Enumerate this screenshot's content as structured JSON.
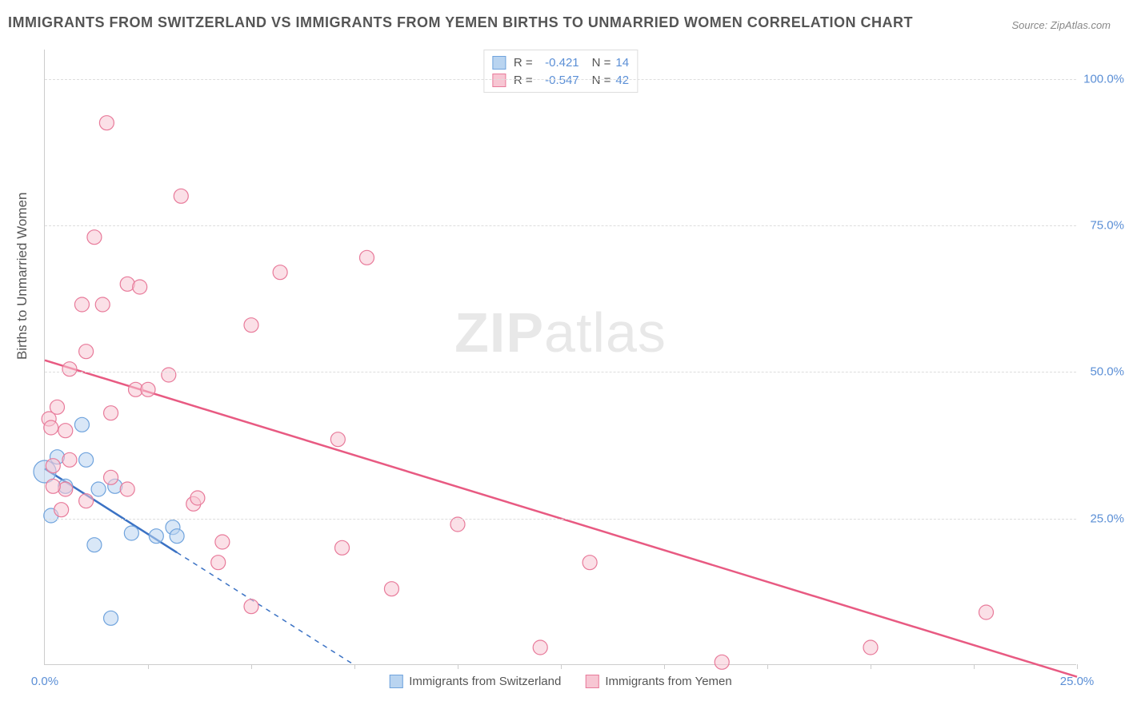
{
  "title": "IMMIGRANTS FROM SWITZERLAND VS IMMIGRANTS FROM YEMEN BIRTHS TO UNMARRIED WOMEN CORRELATION CHART",
  "source": "Source: ZipAtlas.com",
  "y_axis_label": "Births to Unmarried Women",
  "watermark_bold": "ZIP",
  "watermark_thin": "atlas",
  "chart": {
    "type": "scatter",
    "background_color": "#ffffff",
    "grid_color": "#dddddd",
    "axis_color": "#cccccc",
    "tick_label_color": "#5b8fd6",
    "xlim": [
      0,
      25
    ],
    "ylim": [
      0,
      105
    ],
    "y_ticks": [
      25,
      50,
      75,
      100
    ],
    "y_tick_labels": [
      "25.0%",
      "50.0%",
      "75.0%",
      "100.0%"
    ],
    "x_ticks_minor": [
      2.5,
      5,
      7.5,
      10,
      12.5,
      15,
      17.5,
      20,
      22.5,
      25
    ],
    "x_tick_labels": [
      {
        "v": 0,
        "label": "0.0%"
      },
      {
        "v": 25,
        "label": "25.0%"
      }
    ],
    "series": [
      {
        "name": "Immigrants from Switzerland",
        "marker_color_fill": "#b9d4f0",
        "marker_color_stroke": "#6fa3dd",
        "marker_fill_opacity": 0.55,
        "marker_radius": 9,
        "line_color": "#3b72c4",
        "line_width": 2.5,
        "line_dash_after_x": 3.2,
        "r": "-0.421",
        "n": "14",
        "trend": {
          "x1": 0,
          "y1": 33.5,
          "x2": 7.5,
          "y2": 0
        },
        "points": [
          {
            "x": 0.0,
            "y": 33.0,
            "r": 14
          },
          {
            "x": 0.9,
            "y": 41.0
          },
          {
            "x": 0.3,
            "y": 35.5
          },
          {
            "x": 0.5,
            "y": 30.5
          },
          {
            "x": 0.15,
            "y": 25.5
          },
          {
            "x": 1.0,
            "y": 35.0
          },
          {
            "x": 1.3,
            "y": 30.0
          },
          {
            "x": 1.7,
            "y": 30.5
          },
          {
            "x": 1.2,
            "y": 20.5
          },
          {
            "x": 2.1,
            "y": 22.5
          },
          {
            "x": 2.7,
            "y": 22.0
          },
          {
            "x": 3.1,
            "y": 23.5
          },
          {
            "x": 3.2,
            "y": 22.0
          },
          {
            "x": 1.6,
            "y": 8.0
          }
        ]
      },
      {
        "name": "Immigrants from Yemen",
        "marker_color_fill": "#f7c6d3",
        "marker_color_stroke": "#e87a9a",
        "marker_fill_opacity": 0.55,
        "marker_radius": 9,
        "line_color": "#e85a82",
        "line_width": 2.5,
        "r": "-0.547",
        "n": "42",
        "trend": {
          "x1": 0,
          "y1": 52.0,
          "x2": 25,
          "y2": -2
        },
        "points": [
          {
            "x": 1.5,
            "y": 92.5
          },
          {
            "x": 3.3,
            "y": 80.0
          },
          {
            "x": 1.2,
            "y": 73.0
          },
          {
            "x": 7.8,
            "y": 69.5
          },
          {
            "x": 5.7,
            "y": 67.0
          },
          {
            "x": 2.0,
            "y": 65.0
          },
          {
            "x": 2.3,
            "y": 64.5
          },
          {
            "x": 0.9,
            "y": 61.5
          },
          {
            "x": 1.4,
            "y": 61.5
          },
          {
            "x": 5.0,
            "y": 58.0
          },
          {
            "x": 1.0,
            "y": 53.5
          },
          {
            "x": 0.6,
            "y": 50.5
          },
          {
            "x": 3.0,
            "y": 49.5
          },
          {
            "x": 2.2,
            "y": 47.0
          },
          {
            "x": 2.5,
            "y": 47.0
          },
          {
            "x": 0.3,
            "y": 44.0
          },
          {
            "x": 0.1,
            "y": 42.0
          },
          {
            "x": 1.6,
            "y": 43.0
          },
          {
            "x": 0.5,
            "y": 40.0
          },
          {
            "x": 0.15,
            "y": 40.5
          },
          {
            "x": 7.1,
            "y": 38.5
          },
          {
            "x": 0.2,
            "y": 34.0
          },
          {
            "x": 1.6,
            "y": 32.0
          },
          {
            "x": 0.5,
            "y": 30.0
          },
          {
            "x": 0.6,
            "y": 35.0
          },
          {
            "x": 3.6,
            "y": 27.5
          },
          {
            "x": 3.7,
            "y": 28.5
          },
          {
            "x": 0.4,
            "y": 26.5
          },
          {
            "x": 10.0,
            "y": 24.0
          },
          {
            "x": 4.3,
            "y": 21.0
          },
          {
            "x": 7.2,
            "y": 20.0
          },
          {
            "x": 4.2,
            "y": 17.5
          },
          {
            "x": 13.2,
            "y": 17.5
          },
          {
            "x": 8.4,
            "y": 13.0
          },
          {
            "x": 5.0,
            "y": 10.0
          },
          {
            "x": 22.8,
            "y": 9.0
          },
          {
            "x": 12.0,
            "y": 3.0
          },
          {
            "x": 20.0,
            "y": 3.0
          },
          {
            "x": 16.4,
            "y": 0.5
          },
          {
            "x": 0.2,
            "y": 30.5
          },
          {
            "x": 1.0,
            "y": 28.0
          },
          {
            "x": 2.0,
            "y": 30.0
          }
        ]
      }
    ]
  },
  "legend_bottom": [
    "Immigrants from Switzerland",
    "Immigrants from Yemen"
  ],
  "legend_top_labels": {
    "r": "R =",
    "n": "N ="
  }
}
